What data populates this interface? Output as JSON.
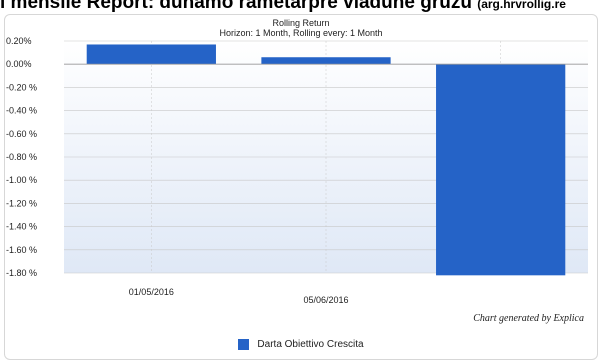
{
  "page": {
    "heading_main": "i mensile Report: dunamo rametarpre viadune gruzu",
    "heading_small": "(arg.hrvrollig.re"
  },
  "colors": {
    "bar": "#2563c7",
    "plot_top": "#ffffff",
    "plot_bottom": "#dfe8f6",
    "grid": "#c8c8c8"
  },
  "chart_data": {
    "type": "bar",
    "title": "Rolling Return",
    "subtitle": "Horizon: 1 Month, Rolling every: 1 Month",
    "categories": [
      "01/05/2016",
      "05/06/2016",
      ""
    ],
    "series": [
      {
        "name": "Darta Obiettivo Crescita",
        "values": [
          0.17,
          0.06,
          -1.82
        ]
      }
    ],
    "ylim": [
      -1.8,
      0.2
    ],
    "yticks": [
      0.2,
      0.0,
      -0.2,
      -0.4,
      -0.6,
      -0.8,
      -1.0,
      -1.2,
      -1.4,
      -1.6,
      -1.8
    ],
    "ytick_labels": [
      "0.20%",
      "0.00%",
      "-0.20 %",
      "-0.40 %",
      "-0.60 %",
      "-0.80 %",
      "-1.00 %",
      "-1.20 %",
      "-1.40 %",
      "-1.60 %",
      "-1.80 %"
    ],
    "grid": true,
    "legend": "bottom-center",
    "credit": "Chart generated by Explica"
  }
}
